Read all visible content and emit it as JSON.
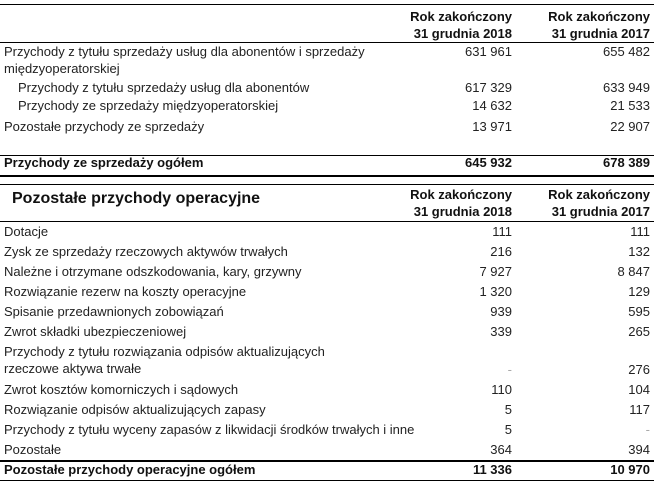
{
  "section1": {
    "headers": [
      {
        "line1": "Rok zakończony",
        "line2": "31 grudnia 2018"
      },
      {
        "line1": "Rok zakończony",
        "line2": "31 grudnia 2017"
      }
    ],
    "rows": [
      {
        "label": "Przychody z tytułu sprzedaży usług dla abonentów i sprzedaży",
        "label2": "międzyoperatorskiej",
        "v2018": "631 961",
        "v2017": "655 482"
      },
      {
        "label": "Przychody z tytułu sprzedaży usług dla abonentów",
        "v2018": "617 329",
        "v2017": "633 949",
        "indent": true
      },
      {
        "label": "Przychody ze sprzedaży międzyoperatorskiej",
        "v2018": "14 632",
        "v2017": "21 533",
        "indent": true
      },
      {
        "label": "Pozostałe przychody ze sprzedaży",
        "v2018": "13 971",
        "v2017": "22 907"
      }
    ],
    "total": {
      "label": "Przychody ze sprzedaży ogółem",
      "v2018": "645 932",
      "v2017": "678 389"
    }
  },
  "section2": {
    "title": "Pozostałe przychody operacyjne",
    "headers": [
      {
        "line1": "Rok zakończony",
        "line2": "31 grudnia 2018"
      },
      {
        "line1": "Rok zakończony",
        "line2": "31 grudnia 2017"
      }
    ],
    "rows": [
      {
        "label": "Dotacje",
        "v2018": "111",
        "v2017": "111"
      },
      {
        "label": "Zysk ze sprzedaży rzeczowych aktywów trwałych",
        "v2018": "216",
        "v2017": "132"
      },
      {
        "label": "Należne i otrzymane odszkodowania, kary, grzywny",
        "v2018": "7 927",
        "v2017": "8 847"
      },
      {
        "label": "Rozwiązanie rezerw na koszty operacyjne",
        "v2018": "1 320",
        "v2017": "129"
      },
      {
        "label": "Spisanie przedawnionych zobowiązań",
        "v2018": "939",
        "v2017": "595"
      },
      {
        "label": "Zwrot składki ubezpieczeniowej",
        "v2018": "339",
        "v2017": "265"
      },
      {
        "label": "Przychody z tytułu rozwiązania odpisów aktualizujących",
        "label2": "rzeczowe aktywa  trwałe",
        "v2018": "-",
        "v2017": "276"
      },
      {
        "label": "Zwrot kosztów komorniczych i sądowych",
        "v2018": "110",
        "v2017": "104"
      },
      {
        "label": "Rozwiązanie odpisów aktualizujących zapasy",
        "v2018": "5",
        "v2017": "117"
      },
      {
        "label": "Przychody z tytułu wyceny zapasów z likwidacji środków trwałych i inne",
        "v2018": "5",
        "v2017": "-"
      },
      {
        "label": "Pozostałe",
        "v2018": "364",
        "v2017": "394"
      }
    ],
    "total": {
      "label": "Pozostałe przychody operacyjne ogółem",
      "v2018": "11 336",
      "v2017": "10 970"
    }
  }
}
